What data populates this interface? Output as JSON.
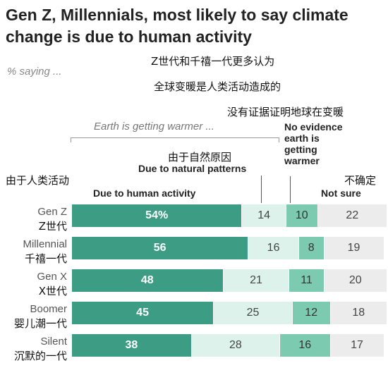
{
  "title": "Gen Z, Millennials, most likely to say climate change is due to human activity",
  "title_cn_line1": "Z世代和千禧一代更多认为",
  "title_cn_line2": "全球变暖是人类活动造成的",
  "subtitle": "% saying ...",
  "group_label": "Earth is getting warmer ...",
  "headers": {
    "human": "Due to human activity",
    "human_cn": "由于人类活动",
    "natural": "Due to natural patterns",
    "natural_cn": "由于自然原因",
    "no_evidence_lines": [
      "No evidence",
      "earth is",
      "getting",
      "warmer"
    ],
    "no_evidence_cn": "没有证据证明地球在变暖",
    "not_sure": "Not sure",
    "not_sure_cn": "不确定"
  },
  "colors": {
    "human": "#3d9d84",
    "natural": "#ddf2ea",
    "no_evidence": "#7ccab0",
    "not_sure": "#ececec"
  },
  "chart_data": {
    "type": "bar",
    "stacked": true,
    "orientation": "horizontal",
    "title": "Gen Z, Millennials, most likely to say climate change is due to human activity",
    "subtitle": "% saying ...",
    "categories": [
      "Gen Z",
      "Millennial",
      "Gen X",
      "Boomer",
      "Silent"
    ],
    "categories_cn": [
      "Z世代",
      "千禧一代",
      "X世代",
      "婴儿潮一代",
      "沉默的一代"
    ],
    "series": [
      {
        "name": "Due to human activity",
        "values": [
          54,
          56,
          48,
          45,
          38
        ],
        "labels": [
          "54%",
          "56",
          "48",
          "45",
          "38"
        ]
      },
      {
        "name": "Due to natural patterns",
        "values": [
          14,
          16,
          21,
          25,
          28
        ],
        "labels": [
          "14",
          "16",
          "21",
          "25",
          "28"
        ]
      },
      {
        "name": "No evidence earth is getting warmer",
        "values": [
          10,
          8,
          11,
          12,
          16
        ],
        "labels": [
          "10",
          "8",
          "11",
          "12",
          "16"
        ]
      },
      {
        "name": "Not sure",
        "values": [
          22,
          19,
          20,
          18,
          17
        ],
        "labels": [
          "22",
          "19",
          "20",
          "18",
          "17"
        ]
      }
    ]
  }
}
